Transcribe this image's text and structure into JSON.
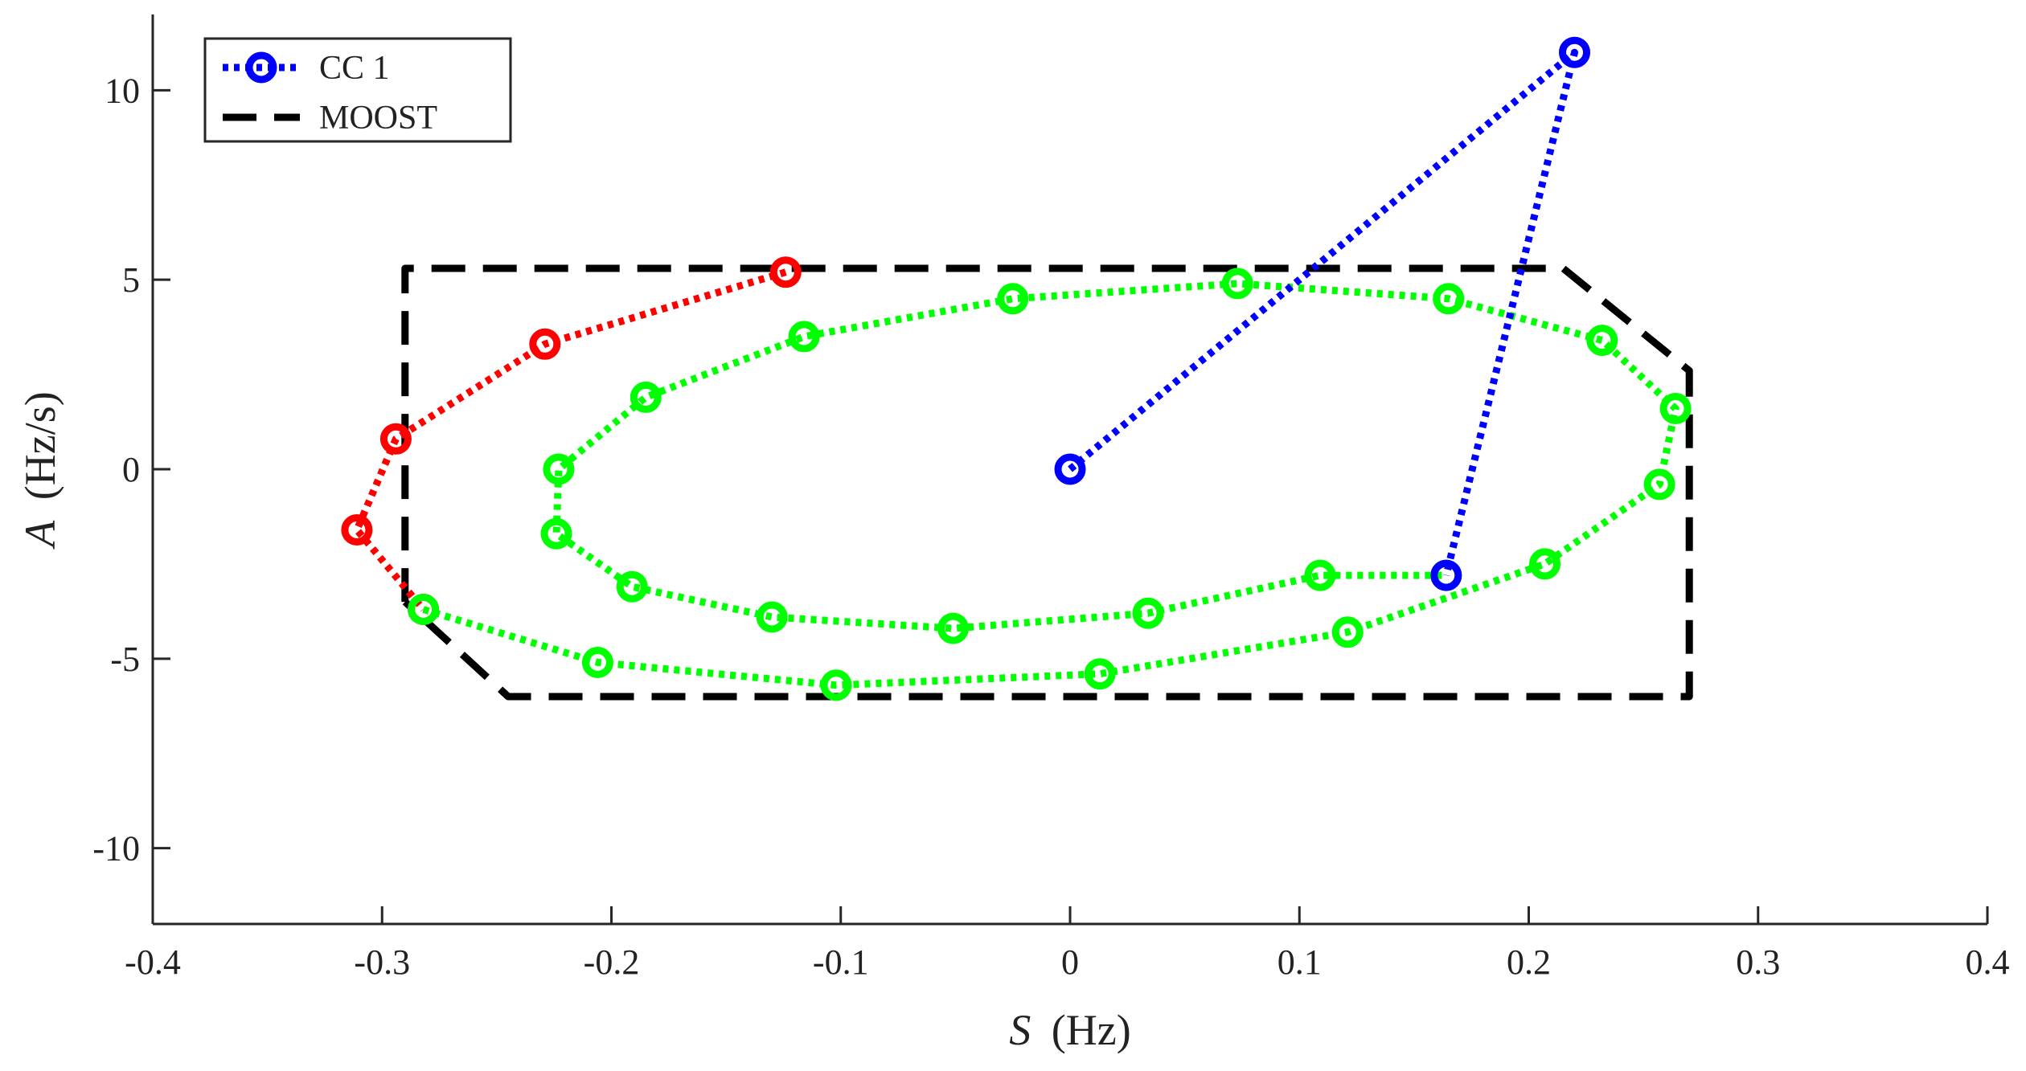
{
  "chart_data": {
    "type": "line",
    "title": "",
    "xlabel": "S (Hz)",
    "xlabel_var": "S",
    "xlabel_unit": "(Hz)",
    "ylabel": "A (Hz/s)",
    "ylabel_var": "A",
    "ylabel_unit": "(Hz/s)",
    "xlim": [
      -0.4,
      0.4
    ],
    "ylim": [
      -12,
      12
    ],
    "xticks": [
      -0.4,
      -0.3,
      -0.2,
      -0.1,
      0,
      0.1,
      0.2,
      0.3,
      0.4
    ],
    "yticks": [
      -10,
      -5,
      0,
      5,
      10
    ],
    "xtick_labels": [
      "-0.4",
      "-0.3",
      "-0.2",
      "-0.1",
      "0",
      "0.1",
      "0.2",
      "0.3",
      "0.4"
    ],
    "ytick_labels": [
      "-10",
      "-5",
      "0",
      "5",
      "10"
    ],
    "grid": false,
    "legend_position": "top-left",
    "legend": [
      {
        "label": "CC 1",
        "style": "blue-dotted-circle"
      },
      {
        "label": "MOOST",
        "style": "black-dashed"
      }
    ],
    "series": [
      {
        "name": "CC 1",
        "in_legend": true,
        "color": "#0000ff",
        "line": "dotted",
        "marker": "circle",
        "x": [
          0,
          0.22,
          0.164
        ],
        "y": [
          0,
          11.0,
          -2.8
        ]
      },
      {
        "name": "MOOST",
        "in_legend": true,
        "color": "#000000",
        "line": "dashed",
        "marker": "none",
        "x": [
          -0.29,
          -0.29,
          0.215,
          0.27,
          0.27,
          -0.245,
          -0.29
        ],
        "y": [
          -3.5,
          5.3,
          5.3,
          2.6,
          -6.0,
          -6.0,
          -3.5
        ]
      },
      {
        "name": "red segment",
        "in_legend": false,
        "color": "#ff0000",
        "line": "dotted",
        "marker": "circle",
        "x": [
          -0.124,
          -0.229,
          -0.294,
          -0.311,
          -0.282
        ],
        "y": [
          5.2,
          3.3,
          0.8,
          -1.6,
          -3.7
        ]
      },
      {
        "name": "green trajectory",
        "in_legend": false,
        "color": "#00ff00",
        "line": "dotted",
        "marker": "circle",
        "x": [
          -0.282,
          -0.206,
          -0.102,
          0.013,
          0.121,
          0.207,
          0.257,
          0.264,
          0.232,
          0.165,
          0.073,
          -0.025,
          -0.116,
          -0.185,
          -0.223,
          -0.224,
          -0.191,
          -0.13,
          -0.051,
          0.034,
          0.109,
          0.164
        ],
        "y": [
          -3.7,
          -5.1,
          -5.7,
          -5.4,
          -4.3,
          -2.5,
          -0.4,
          1.6,
          3.4,
          4.5,
          4.9,
          4.5,
          3.5,
          1.9,
          0.0,
          -1.7,
          -3.1,
          -3.9,
          -4.2,
          -3.8,
          -2.8,
          -2.8
        ]
      }
    ]
  }
}
